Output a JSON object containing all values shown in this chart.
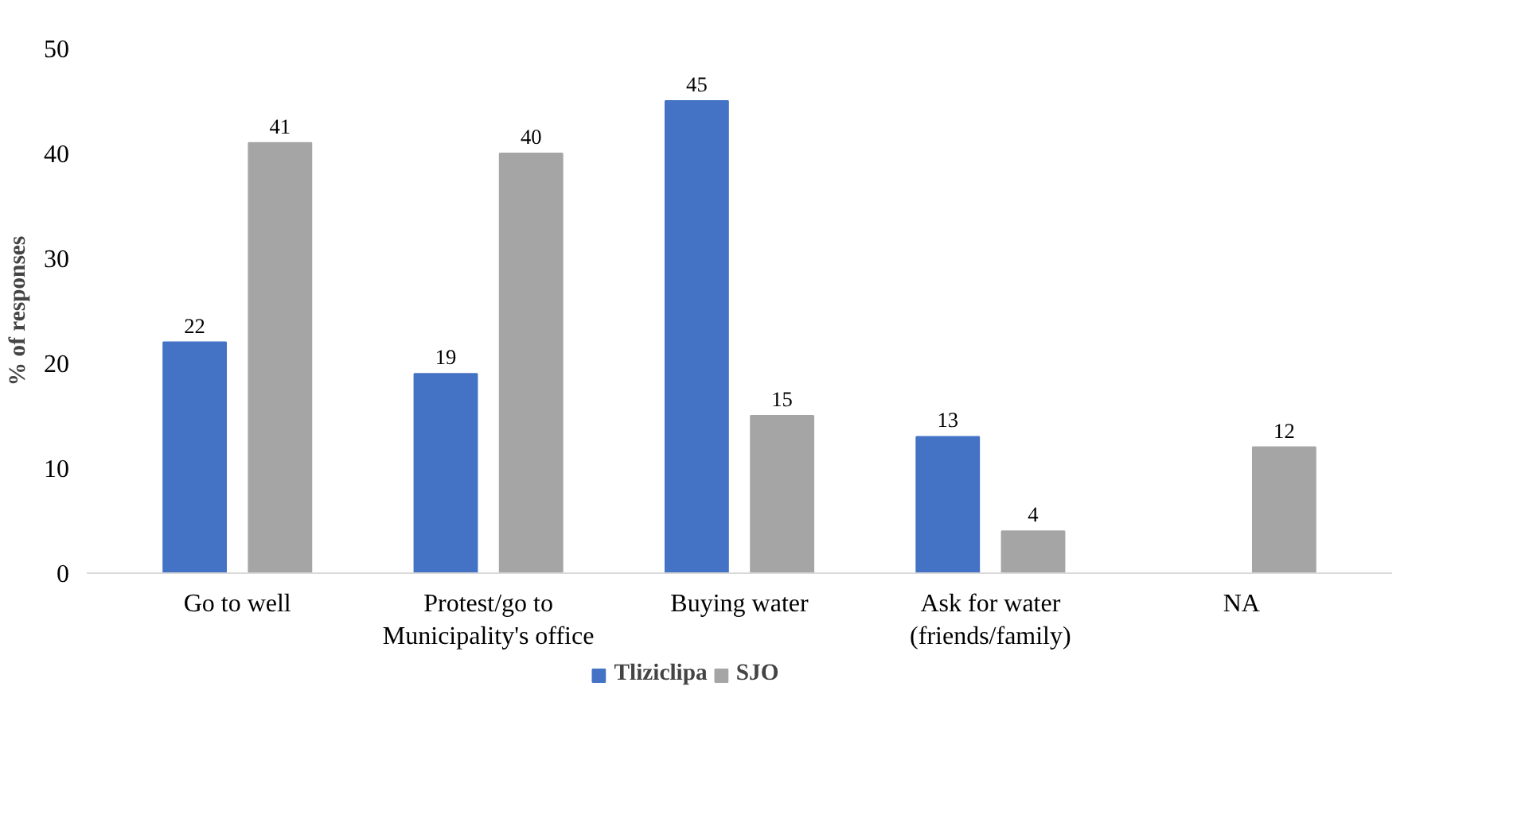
{
  "chart_data": {
    "type": "bar",
    "ylabel": "% of responses",
    "categories": [
      "Go to well",
      "Protest/go to\nMunicipality's office",
      "Buying water",
      "Ask for water\n(friends/family)",
      "NA"
    ],
    "series": [
      {
        "name": "Tliziclipa",
        "color": "#4472c4",
        "values": [
          22,
          19,
          45,
          13,
          null
        ]
      },
      {
        "name": "SJO",
        "color": "#a5a5a5",
        "values": [
          41,
          40,
          15,
          4,
          12
        ]
      }
    ],
    "ylim": [
      0,
      50
    ],
    "yticks": [
      0,
      10,
      20,
      30,
      40,
      50
    ],
    "grid": false,
    "legend": "bottom",
    "data_labels": true
  }
}
